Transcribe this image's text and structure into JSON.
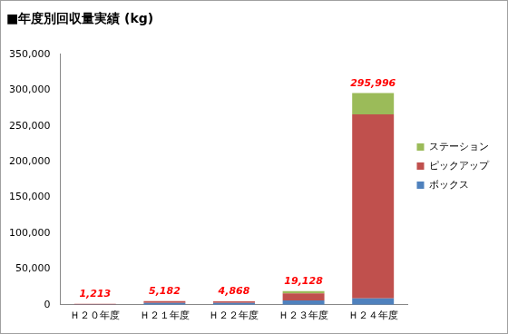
{
  "chart_data": {
    "type": "bar",
    "title": "■年度別回収量実績 (kg)",
    "categories": [
      "Ｈ２０年度",
      "Ｈ２１年度",
      "Ｈ２２年度",
      "Ｈ２３年度",
      "Ｈ２４年度"
    ],
    "series": [
      {
        "name": "ボックス",
        "color": "#4f81bd",
        "values": [
          400,
          2500,
          2500,
          6000,
          9000
        ]
      },
      {
        "name": "ピックアップ",
        "color": "#c0504d",
        "values": [
          813,
          2682,
          2368,
          10000,
          257000
        ]
      },
      {
        "name": "ステーション",
        "color": "#9bbb59",
        "values": [
          0,
          0,
          0,
          3128,
          29996
        ]
      }
    ],
    "totals": [
      1213,
      5182,
      4868,
      19128,
      295996
    ],
    "total_labels": [
      "1,213",
      "5,182",
      "4,868",
      "19,128",
      "295,996"
    ],
    "stacked": true,
    "legend": "right",
    "grid": false,
    "ylim": [
      0,
      350000
    ],
    "yticks": [
      0,
      {
        "value": 50000,
        "label": "50,000"
      },
      {
        "value": 100000,
        "label": "100,000"
      },
      {
        "value": 150000,
        "label": "150,000"
      },
      {
        "value": 200000,
        "label": "200,000"
      },
      {
        "value": 250000,
        "label": "250,000"
      },
      {
        "value": 300000,
        "label": "300,000"
      },
      {
        "value": 350000,
        "label": "350,000"
      }
    ]
  }
}
